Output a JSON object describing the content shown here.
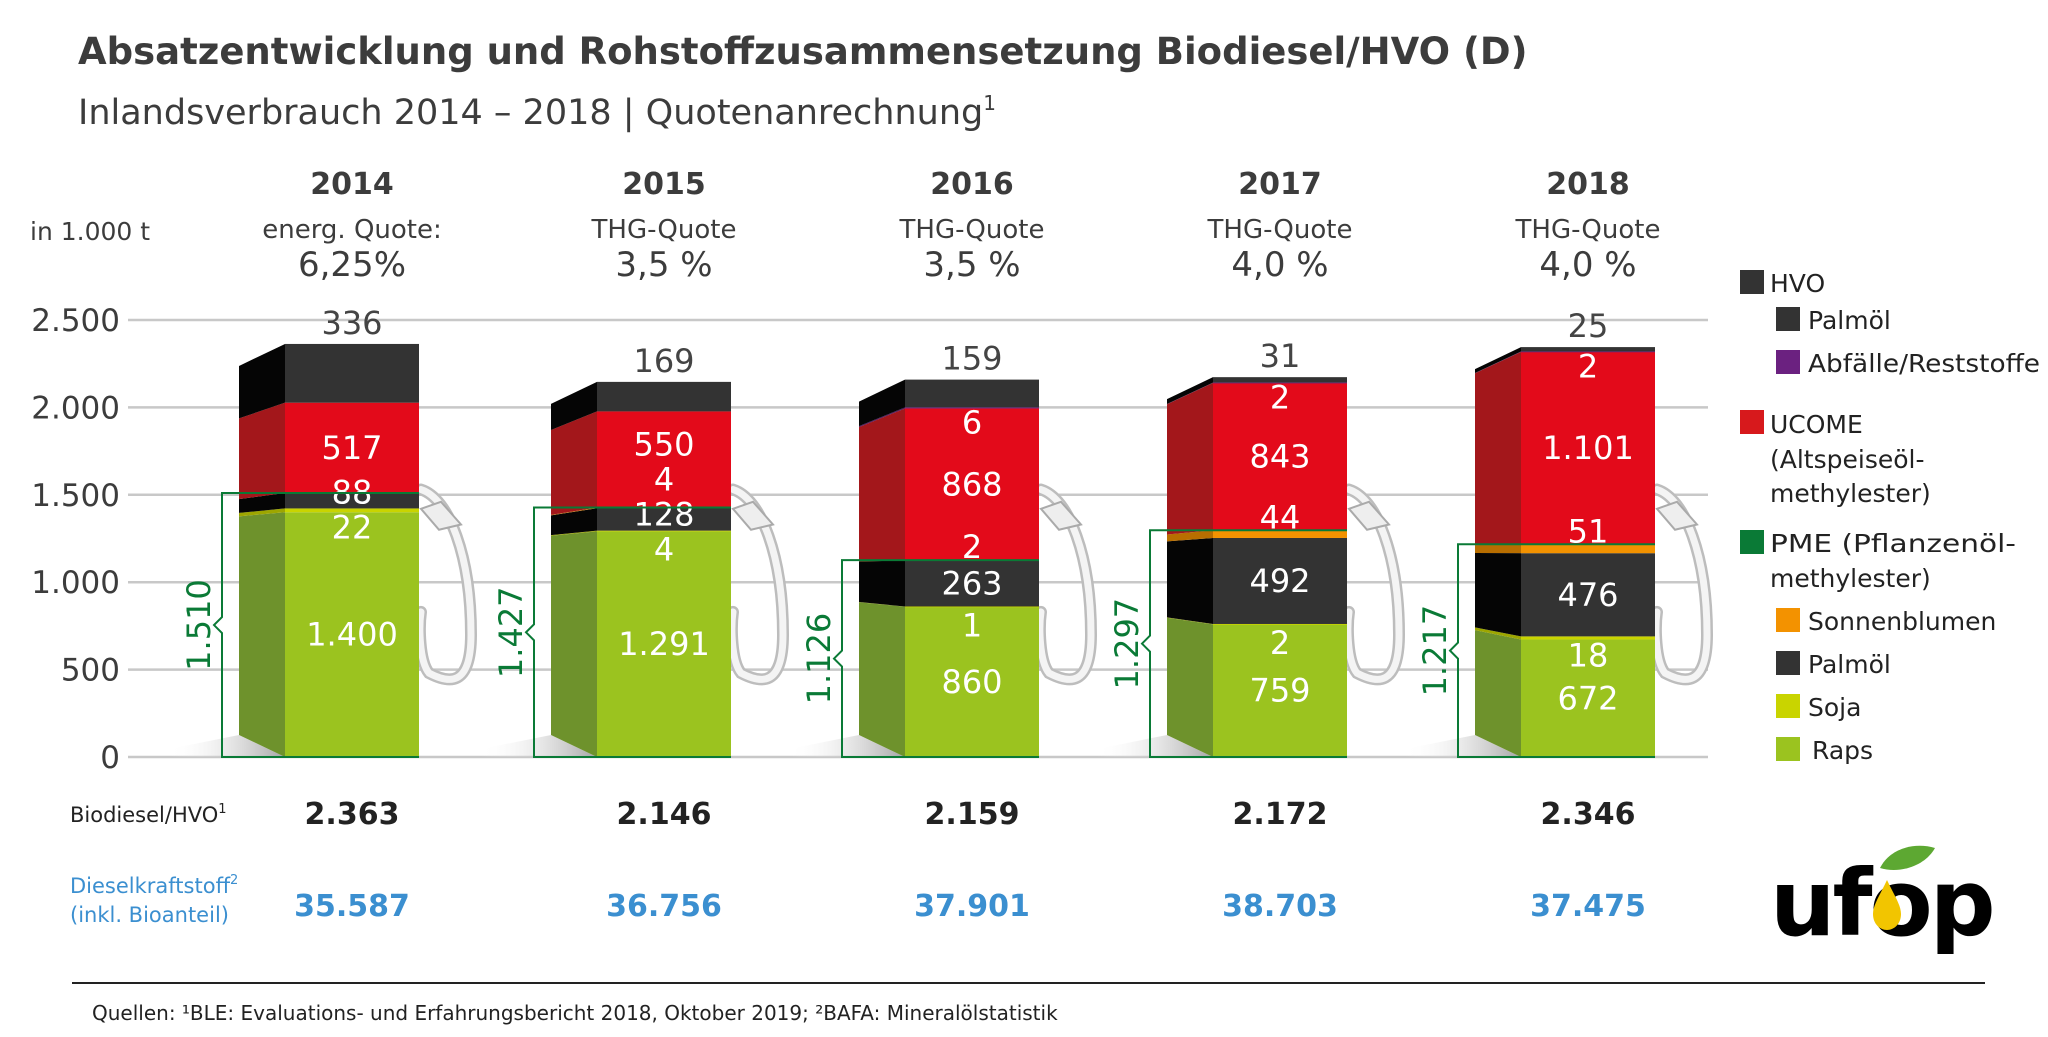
{
  "title": "Absatzentwicklung und Rohstoffzusammensetzung Biodiesel/HVO (D)",
  "subtitle": "Inlandsverbrauch 2014 – 2018 | Quotenanrechnung",
  "subtitle_sup": "1",
  "unit_label": "in 1.000 t",
  "chart_data": {
    "type": "bar",
    "stacked": true,
    "categories": [
      "2014",
      "2015",
      "2016",
      "2017",
      "2018"
    ],
    "quota_labels": [
      [
        "energ. Quote:",
        "6,25%"
      ],
      [
        "THG-Quote",
        "3,5 %"
      ],
      [
        "THG-Quote",
        "3,5 %"
      ],
      [
        "THG-Quote",
        "4,0 %"
      ],
      [
        "THG-Quote",
        "4,0 %"
      ]
    ],
    "ylim": [
      0,
      2500
    ],
    "yticks": [
      0,
      500,
      1000,
      1500,
      2000,
      2500
    ],
    "ytick_labels": [
      "0",
      "500",
      "1.000",
      "1.500",
      "2.000",
      "2.500"
    ],
    "grid": true,
    "legend_position": "right",
    "series": [
      {
        "name": "Raps",
        "group": "PME",
        "color": "#9BC31F",
        "side": "#6E922C",
        "values": [
          1400,
          1291,
          860,
          759,
          672
        ],
        "labels": [
          "1.400",
          "1.291",
          "860",
          "759",
          "672"
        ]
      },
      {
        "name": "Soja",
        "group": "PME",
        "color": "#C9D400",
        "side": "#9DA600",
        "values": [
          22,
          4,
          1,
          2,
          18
        ],
        "labels": [
          "22",
          "4",
          "1",
          "2",
          "18"
        ]
      },
      {
        "name": "Palmöl",
        "group": "PME",
        "color": "#333333",
        "side": "#050505",
        "values": [
          88,
          128,
          263,
          492,
          476
        ],
        "labels": [
          "88",
          "128",
          "263",
          "492",
          "476"
        ]
      },
      {
        "name": "Sonnenblumen",
        "group": "PME",
        "color": "#F39200",
        "side": "#B86E00",
        "values": [
          0,
          4,
          2,
          44,
          51
        ],
        "labels": [
          "",
          "4",
          "2",
          "44",
          "51"
        ]
      },
      {
        "name": "UCOME",
        "group": "UCOME",
        "color": "#E30A1A",
        "side": "#A3171B",
        "values": [
          517,
          550,
          868,
          843,
          1101
        ],
        "labels": [
          "517",
          "550",
          "868",
          "843",
          "1.101"
        ]
      },
      {
        "name": "Abfälle/Reststoffe",
        "group": "HVO",
        "color": "#6B2180",
        "side": "#4B145C",
        "values": [
          0,
          0,
          6,
          2,
          2
        ],
        "labels": [
          "",
          "",
          "6",
          "2",
          "2"
        ]
      },
      {
        "name": "Palmöl",
        "group": "HVO",
        "color": "#333333",
        "side": "#050505",
        "values": [
          336,
          169,
          159,
          31,
          25
        ],
        "labels": [
          "336",
          "169",
          "159",
          "31",
          "25"
        ]
      }
    ],
    "pme_totals": [
      "1.510",
      "1.427",
      "1.126",
      "1.297",
      "1.217"
    ],
    "colors": {
      "pme_bracket": "#0A7A36",
      "diesel_row": "#3B8FD0",
      "grid": "#C8C8C8"
    }
  },
  "rows": {
    "biodiesel_label": "Biodiesel/HVO",
    "biodiesel_sup": "1",
    "biodiesel_values": [
      "2.363",
      "2.146",
      "2.159",
      "2.172",
      "2.346"
    ],
    "diesel_label_1": "Dieselkraftstoff",
    "diesel_sup": "2",
    "diesel_label_2": "(inkl. Bioanteil)",
    "diesel_values": [
      "35.587",
      "36.756",
      "37.901",
      "38.703",
      "37.475"
    ]
  },
  "legend": {
    "hvo": {
      "label": "HVO",
      "color": "#333333",
      "items": [
        {
          "label": "Palmöl",
          "color": "#333333"
        },
        {
          "label": "Abfälle/Reststoffe",
          "color": "#6B2180"
        }
      ]
    },
    "ucome": {
      "label": "UCOME",
      "color": "#D7191C",
      "desc_1": "(Altspeiseöl-",
      "desc_2": "methylester)"
    },
    "pme": {
      "label": "PME (Pflanzenöl-",
      "label_2": "methylester)",
      "color": "#0A7A36",
      "items": [
        {
          "label": "Sonnenblumen",
          "color": "#F39200"
        },
        {
          "label": "Palmöl",
          "color": "#333333"
        },
        {
          "label": "Soja",
          "color": "#C9D400"
        },
        {
          "label": "Raps",
          "color": "#9BC31F"
        }
      ]
    }
  },
  "sources": "Quellen: ¹BLE: Evaluations- und Erfahrungsbericht 2018, Oktober 2019; ²BAFA: Mineralölstatistik",
  "logo": {
    "text": "ufop",
    "leaf_color": "#5DA832",
    "drop_color": "#F2C500"
  }
}
